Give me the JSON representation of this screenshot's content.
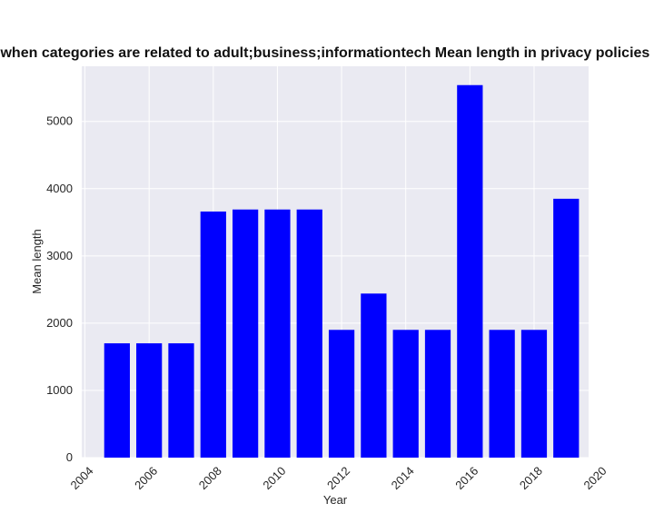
{
  "chart_data": {
    "type": "bar",
    "title": "Year when categories are related to adult;business;informationtech Mean length in privacy policies by year",
    "xlabel": "Year",
    "ylabel": "Mean length",
    "x": [
      2005,
      2006,
      2007,
      2008,
      2009,
      2010,
      2011,
      2012,
      2013,
      2014,
      2015,
      2016,
      2017,
      2018,
      2019
    ],
    "values": [
      1700,
      1700,
      1700,
      3660,
      3690,
      3690,
      3690,
      1900,
      2440,
      1900,
      1900,
      5540,
      1900,
      1900,
      3850
    ],
    "xticks": [
      2004,
      2006,
      2008,
      2010,
      2012,
      2014,
      2016,
      2018,
      2020
    ],
    "yticks": [
      0,
      1000,
      2000,
      3000,
      4000,
      5000
    ],
    "xlim": [
      2003.9,
      2019.7
    ],
    "ylim": [
      0,
      5820
    ],
    "bar_color": "#0000ff",
    "background_color": "#eaeaf2",
    "grid": true,
    "legend": "none"
  }
}
